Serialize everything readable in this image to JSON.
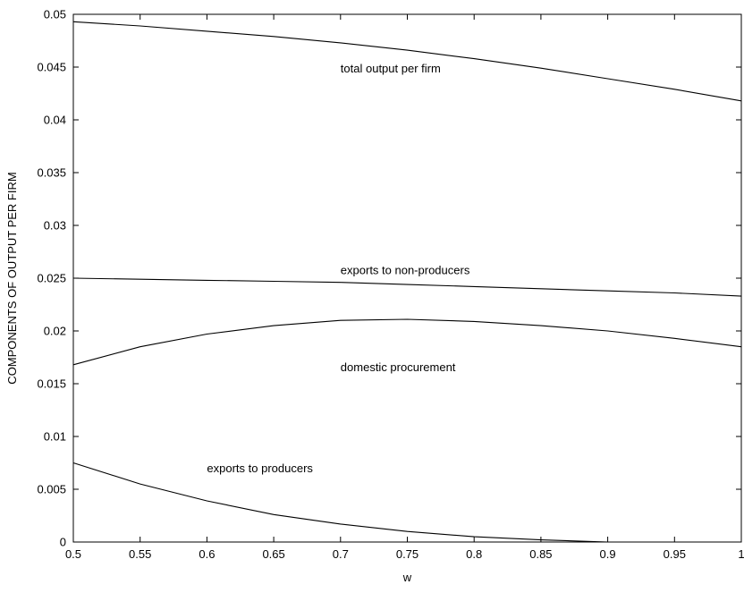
{
  "chart_data": {
    "type": "line",
    "title": "",
    "xlabel": "w",
    "ylabel": "COMPONENTS OF OUTPUT PER FIRM",
    "xlim": [
      0.5,
      1
    ],
    "ylim": [
      0,
      0.05
    ],
    "xticks": [
      "0.5",
      "0.55",
      "0.6",
      "0.65",
      "0.7",
      "0.75",
      "0.8",
      "0.85",
      "0.9",
      "0.95",
      "1"
    ],
    "yticks": [
      "0",
      "0.005",
      "0.01",
      "0.015",
      "0.02",
      "0.025",
      "0.03",
      "0.035",
      "0.04",
      "0.045",
      "0.05"
    ],
    "grid": false,
    "line_color": "#000000",
    "x": [
      0.5,
      0.55,
      0.6,
      0.65,
      0.7,
      0.75,
      0.8,
      0.85,
      0.9,
      0.95,
      1.0
    ],
    "series": [
      {
        "name": "total output per firm",
        "values": [
          0.0493,
          0.0489,
          0.0484,
          0.0479,
          0.0473,
          0.0466,
          0.0458,
          0.0449,
          0.0439,
          0.0429,
          0.0418
        ],
        "label_at": [
          0.7,
          0.0445
        ]
      },
      {
        "name": "exports to non-producers",
        "values": [
          0.025,
          0.0249,
          0.0248,
          0.0247,
          0.0246,
          0.0244,
          0.0242,
          0.024,
          0.0238,
          0.0236,
          0.0233
        ],
        "label_at": [
          0.7,
          0.0254
        ]
      },
      {
        "name": "domestic procurement",
        "values": [
          0.0168,
          0.0185,
          0.0197,
          0.0205,
          0.021,
          0.0211,
          0.0209,
          0.0205,
          0.02,
          0.0193,
          0.0185
        ],
        "label_at": [
          0.7,
          0.0162
        ]
      },
      {
        "name": "exports to producers",
        "values": [
          0.0075,
          0.0055,
          0.0039,
          0.0026,
          0.0017,
          0.001,
          0.0005,
          0.0002,
          0.0,
          0.0,
          0.0
        ],
        "label_at": [
          0.6,
          0.0066
        ]
      }
    ]
  }
}
